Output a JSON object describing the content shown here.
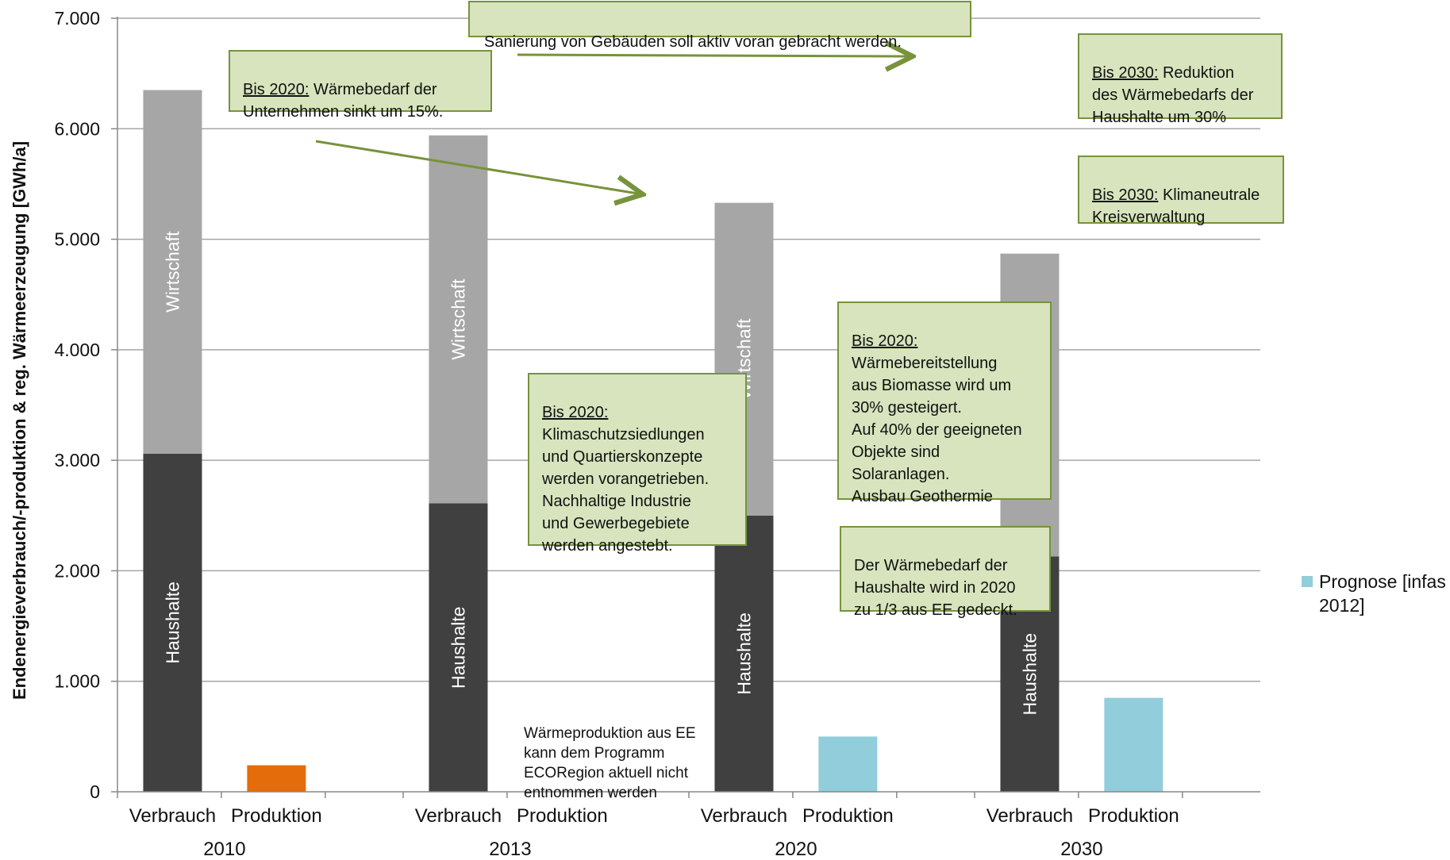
{
  "chart_data": {
    "type": "bar",
    "stacked": true,
    "ylabel": "Endenergieverbrauch/-produktion & reg. Wärmeerzeugung [GWh/a]",
    "ylim": [
      0,
      7000
    ],
    "yticks": [
      0,
      1000,
      2000,
      3000,
      4000,
      5000,
      6000,
      7000
    ],
    "ytick_labels": [
      "0",
      "1.000",
      "2.000",
      "3.000",
      "4.000",
      "5.000",
      "6.000",
      "7.000"
    ],
    "grid": true,
    "groups": [
      "2010",
      "2013",
      "2020",
      "2030"
    ],
    "subcategories": [
      "Verbrauch",
      "Produktion"
    ],
    "series": [
      {
        "name": "Haushalte",
        "values": [
          3060,
          2610,
          2500,
          2130
        ],
        "color": "#404040"
      },
      {
        "name": "Wirtschaft",
        "values": [
          3290,
          3330,
          2830,
          2740
        ],
        "color": "#a6a6a6"
      }
    ],
    "production": [
      {
        "group": "2010",
        "value": 240,
        "color": "#e46c0a"
      },
      {
        "group": "2013",
        "value": null
      },
      {
        "group": "2020",
        "value": 500,
        "color": "#92cddc"
      },
      {
        "group": "2030",
        "value": 850,
        "color": "#92cddc"
      }
    ],
    "legend": [
      {
        "label": "Prognose [infas 2012]",
        "color": "#92cddc"
      }
    ],
    "legend_position": "right"
  },
  "annotations": {
    "sanierung": "Sanierung von Gebäuden soll aktiv voran gebracht werden.",
    "unternehmen_title": "Bis 2020:",
    "unternehmen_text": " Wärmebedarf der\nUnternehmen sinkt um 15%.",
    "haushalte_2030_title": "Bis 2030:",
    "haushalte_2030_text": " Reduktion\ndes Wärmebedarfs der\nHaushalte um 30%",
    "kreis_title": "Bis 2030:",
    "kreis_text": " Klimaneutrale\nKreisverwaltung",
    "biomasse_title": "Bis 2020:",
    "biomasse_text": "\nWärmebereitstellung\naus Biomasse wird um\n30% gesteigert.\nAuf 40% der geeigneten\nObjekte sind\nSolaranlagen.\nAusbau Geothermie",
    "klimaschutz_title": "Bis 2020:",
    "klimaschutz_text": "\nKlimaschutzsiedlungen\nund Quartierskonzepte\nwerden vorangetrieben.\nNachhaltige Industrie\nund Gewerbegebiete\nwerden angestebt.",
    "ee_deckung": "Der Wärmebedarf der\nHaushalte wird in 2020\nzu 1/3 aus EE gedeckt.",
    "produktion_note": "Wärmeproduktion aus EE\nkann dem Programm\nECORegion aktuell nicht\nentnommen werden"
  },
  "colors": {
    "note_fill": "#d7e4bd",
    "note_border": "#77933c",
    "arrow": "#77933c",
    "grid": "#a6a6a6"
  }
}
